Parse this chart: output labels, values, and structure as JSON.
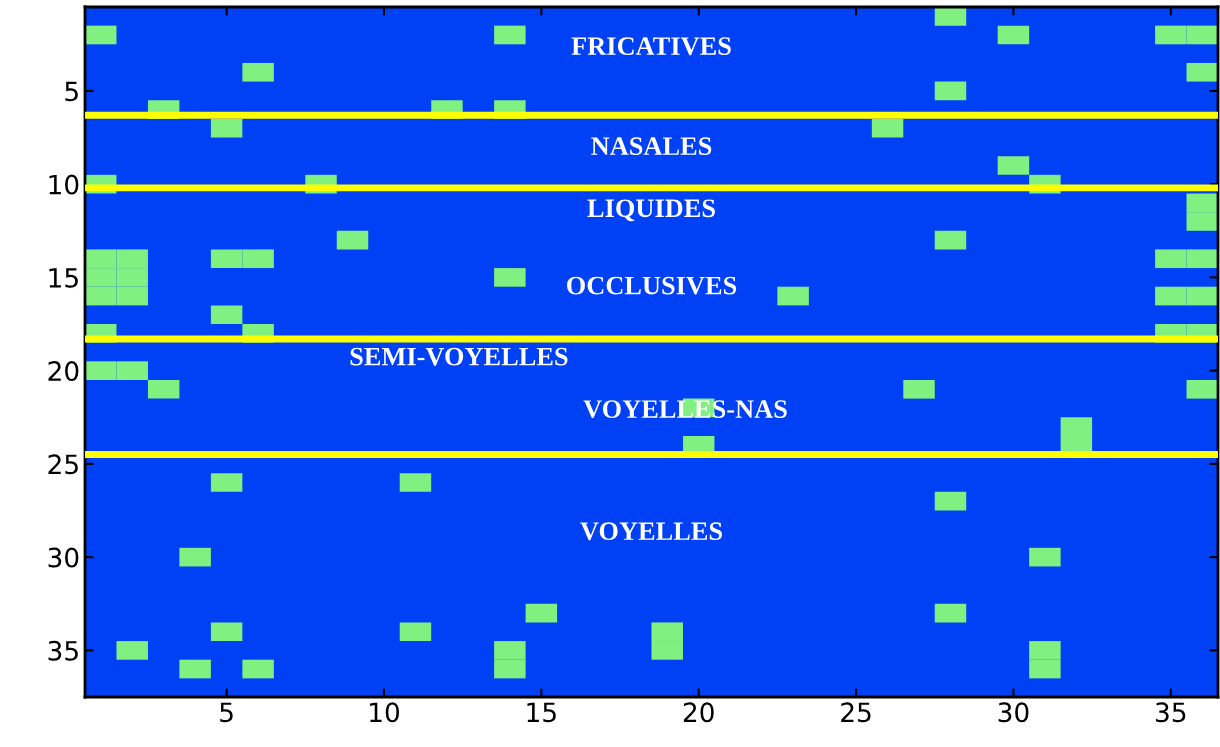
{
  "chart_data": {
    "type": "scatter",
    "marker": "square",
    "x": [
      28,
      1,
      14,
      30,
      35,
      36,
      6,
      36,
      28,
      3,
      12,
      14,
      5,
      26,
      30,
      1,
      8,
      31,
      36,
      36,
      9,
      28,
      1,
      2,
      5,
      6,
      35,
      36,
      1,
      2,
      14,
      1,
      2,
      23,
      35,
      36,
      5,
      1,
      6,
      35,
      36,
      1,
      2,
      3,
      27,
      36,
      20,
      32,
      20,
      32,
      5,
      11,
      28,
      4,
      31,
      15,
      28,
      5,
      11,
      19,
      2,
      14,
      19,
      31,
      4,
      6,
      14,
      31
    ],
    "series": [
      {
        "color": "#80f080",
        "values": [
          1,
          2,
          2,
          2,
          2,
          2,
          4,
          4,
          5,
          6,
          6,
          6,
          7,
          7,
          9,
          10,
          10,
          10,
          11,
          12,
          13,
          13,
          14,
          14,
          14,
          14,
          14,
          14,
          15,
          15,
          15,
          16,
          16,
          16,
          16,
          16,
          17,
          18,
          18,
          18,
          18,
          20,
          20,
          21,
          21,
          21,
          22,
          23,
          24,
          24,
          26,
          26,
          27,
          30,
          30,
          33,
          33,
          34,
          34,
          34,
          35,
          35,
          35,
          35,
          36,
          36,
          36,
          36
        ]
      }
    ],
    "xlim": [
      0.5,
      36.5
    ],
    "xticks": [
      5,
      10,
      15,
      20,
      25,
      30,
      35
    ],
    "ylim": [
      37.5,
      0.5
    ],
    "yticks": [
      5,
      10,
      15,
      20,
      25,
      30,
      35
    ],
    "ref_lines": [
      {
        "axis": "y",
        "value": 6.3,
        "color": "#ffff00"
      },
      {
        "axis": "y",
        "value": 10.2,
        "color": "#ffff00"
      },
      {
        "axis": "y",
        "value": 18.3,
        "color": "#ffff00"
      },
      {
        "axis": "y",
        "value": 24.5,
        "color": "#ffff00"
      }
    ],
    "annotations": [
      "FRICATIVES",
      "NASALES",
      "LIQUIDES",
      "OCCLUSIVES",
      "SEMI-VOYELLES",
      "VOYELLES-NAS",
      "VOYELLES"
    ]
  }
}
